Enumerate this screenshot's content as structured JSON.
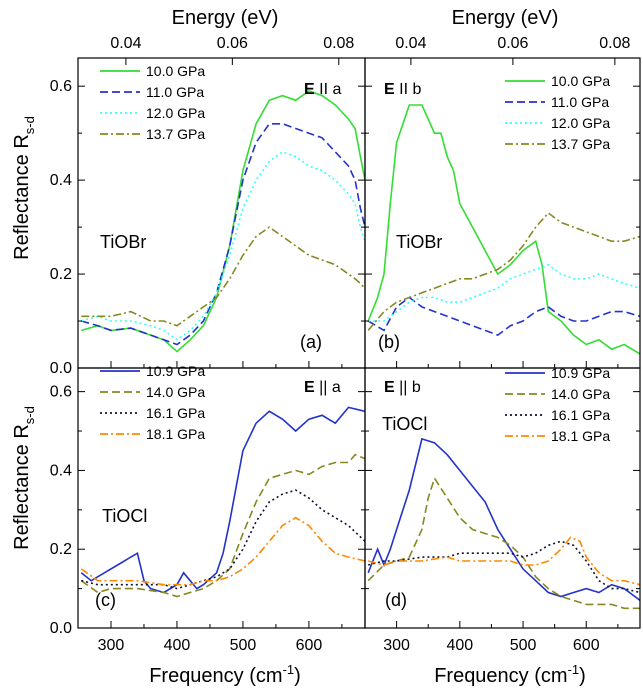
{
  "chart_data": {
    "type": "line",
    "top_axis": {
      "label": "Energy (eV)",
      "ticks": [
        "0.04",
        "0.06",
        "0.08"
      ]
    },
    "bottom_axis": {
      "label": "Frequency (cm",
      "label_sup": "-1",
      "label_end": ")",
      "ticks": [
        "300",
        "400",
        "500",
        "600"
      ],
      "xlim": [
        250,
        685
      ]
    },
    "left_axis": {
      "label": "Reflectance R",
      "label_sub": "s-d",
      "ylim": [
        0,
        0.66
      ]
    },
    "panels": [
      {
        "letter": "(a)",
        "material": "TiOBr",
        "pol_bold": "E",
        "pol_rest": " II a",
        "yticks": [
          "0.0",
          "0.2",
          "0.4",
          "0.6"
        ],
        "series": [
          {
            "name": "10.0 GPa",
            "color": "#33dd33",
            "dash": "solid",
            "x": [
              255,
              280,
              300,
              330,
              360,
              380,
              400,
              420,
              440,
              460,
              480,
              500,
              520,
              540,
              560,
              580,
              600,
              620,
              640,
              660,
              670,
              678,
              685
            ],
            "y": [
              0.08,
              0.09,
              0.08,
              0.085,
              0.07,
              0.06,
              0.035,
              0.06,
              0.09,
              0.15,
              0.26,
              0.42,
              0.52,
              0.57,
              0.58,
              0.57,
              0.59,
              0.58,
              0.56,
              0.53,
              0.51,
              0.45,
              0.4
            ]
          },
          {
            "name": "11.0 GPa",
            "color": "#2233cc",
            "dash": "dashed",
            "x": [
              255,
              280,
              300,
              330,
              360,
              380,
              400,
              420,
              440,
              460,
              480,
              500,
              520,
              540,
              560,
              580,
              600,
              620,
              640,
              660,
              670,
              678,
              685
            ],
            "y": [
              0.1,
              0.09,
              0.08,
              0.085,
              0.07,
              0.06,
              0.05,
              0.07,
              0.1,
              0.16,
              0.26,
              0.4,
              0.48,
              0.52,
              0.52,
              0.51,
              0.5,
              0.49,
              0.46,
              0.43,
              0.4,
              0.34,
              0.3
            ]
          },
          {
            "name": "12.0 GPa",
            "color": "#33ffff",
            "dash": "dotted",
            "x": [
              255,
              280,
              300,
              330,
              360,
              380,
              400,
              420,
              440,
              460,
              480,
              500,
              520,
              540,
              560,
              580,
              600,
              620,
              640,
              660,
              670,
              678,
              685
            ],
            "y": [
              0.1,
              0.11,
              0.1,
              0.1,
              0.09,
              0.08,
              0.06,
              0.08,
              0.11,
              0.16,
              0.24,
              0.34,
              0.4,
              0.44,
              0.46,
              0.45,
              0.43,
              0.42,
              0.4,
              0.37,
              0.35,
              0.3,
              0.27
            ]
          },
          {
            "name": "13.7 GPa",
            "color": "#888822",
            "dash": "dashdot",
            "x": [
              255,
              280,
              300,
              330,
              360,
              380,
              400,
              420,
              440,
              460,
              480,
              500,
              520,
              540,
              560,
              580,
              600,
              620,
              640,
              660,
              670,
              678,
              685
            ],
            "y": [
              0.11,
              0.11,
              0.11,
              0.12,
              0.1,
              0.1,
              0.09,
              0.11,
              0.13,
              0.15,
              0.19,
              0.24,
              0.28,
              0.3,
              0.28,
              0.26,
              0.24,
              0.23,
              0.22,
              0.2,
              0.19,
              0.18,
              0.17
            ]
          }
        ]
      },
      {
        "letter": "(b)",
        "material": "TiOBr",
        "pol_bold": "E",
        "pol_rest": " II b",
        "series": [
          {
            "name": "10.0 GPa",
            "color": "#33dd33",
            "dash": "solid",
            "x": [
              255,
              270,
              280,
              290,
              300,
              320,
              340,
              360,
              370,
              380,
              390,
              400,
              420,
              440,
              460,
              480,
              500,
              520,
              530,
              540,
              560,
              580,
              600,
              620,
              640,
              660,
              685
            ],
            "y": [
              0.1,
              0.15,
              0.2,
              0.35,
              0.48,
              0.56,
              0.56,
              0.5,
              0.5,
              0.45,
              0.42,
              0.35,
              0.3,
              0.25,
              0.2,
              0.22,
              0.25,
              0.27,
              0.22,
              0.12,
              0.1,
              0.07,
              0.05,
              0.06,
              0.04,
              0.05,
              0.03
            ]
          },
          {
            "name": "11.0 GPa",
            "color": "#2233cc",
            "dash": "dashed",
            "x": [
              255,
              280,
              300,
              320,
              340,
              360,
              380,
              400,
              420,
              440,
              460,
              480,
              500,
              520,
              540,
              560,
              580,
              600,
              620,
              640,
              660,
              685
            ],
            "y": [
              0.1,
              0.08,
              0.13,
              0.15,
              0.13,
              0.12,
              0.11,
              0.1,
              0.09,
              0.08,
              0.07,
              0.09,
              0.1,
              0.12,
              0.13,
              0.11,
              0.1,
              0.1,
              0.11,
              0.12,
              0.12,
              0.11
            ]
          },
          {
            "name": "12.0 GPa",
            "color": "#33ffff",
            "dash": "dotted",
            "x": [
              255,
              280,
              300,
              320,
              340,
              360,
              380,
              400,
              420,
              440,
              460,
              480,
              500,
              520,
              540,
              560,
              580,
              600,
              620,
              640,
              660,
              685
            ],
            "y": [
              0.1,
              0.1,
              0.12,
              0.14,
              0.15,
              0.15,
              0.14,
              0.14,
              0.15,
              0.16,
              0.17,
              0.19,
              0.2,
              0.21,
              0.22,
              0.2,
              0.19,
              0.19,
              0.2,
              0.19,
              0.18,
              0.17
            ]
          },
          {
            "name": "13.7 GPa",
            "color": "#888822",
            "dash": "dashdot",
            "x": [
              255,
              280,
              300,
              320,
              340,
              360,
              380,
              400,
              420,
              440,
              460,
              480,
              500,
              520,
              540,
              560,
              580,
              600,
              620,
              640,
              660,
              685
            ],
            "y": [
              0.08,
              0.12,
              0.14,
              0.15,
              0.16,
              0.17,
              0.18,
              0.19,
              0.19,
              0.2,
              0.21,
              0.23,
              0.26,
              0.3,
              0.33,
              0.31,
              0.3,
              0.29,
              0.28,
              0.27,
              0.27,
              0.28
            ]
          }
        ]
      },
      {
        "letter": "(c)",
        "material": "TiOCl",
        "pol_bold": "E",
        "pol_rest": " || a",
        "yticks": [
          "0.0",
          "0.2",
          "0.4",
          "0.6"
        ],
        "series": [
          {
            "name": "10.9 GPa",
            "color": "#2233cc",
            "dash": "solid",
            "x": [
              255,
              270,
              290,
              310,
              330,
              340,
              350,
              360,
              380,
              400,
              410,
              420,
              430,
              440,
              460,
              470,
              480,
              490,
              500,
              520,
              540,
              560,
              580,
              600,
              620,
              640,
              660,
              685
            ],
            "y": [
              0.14,
              0.12,
              0.14,
              0.16,
              0.18,
              0.19,
              0.12,
              0.1,
              0.09,
              0.11,
              0.14,
              0.12,
              0.1,
              0.11,
              0.14,
              0.19,
              0.27,
              0.36,
              0.45,
              0.52,
              0.55,
              0.53,
              0.5,
              0.53,
              0.54,
              0.52,
              0.56,
              0.55
            ]
          },
          {
            "name": "14.0 GPa",
            "color": "#888822",
            "dash": "dashed",
            "x": [
              255,
              280,
              300,
              340,
              380,
              400,
              420,
              440,
              460,
              480,
              500,
              520,
              540,
              560,
              580,
              600,
              620,
              640,
              660,
              670,
              685
            ],
            "y": [
              0.12,
              0.09,
              0.1,
              0.1,
              0.09,
              0.08,
              0.09,
              0.1,
              0.12,
              0.15,
              0.24,
              0.32,
              0.38,
              0.39,
              0.4,
              0.39,
              0.41,
              0.42,
              0.42,
              0.44,
              0.43
            ]
          },
          {
            "name": "16.1 GPa",
            "color": "#111133",
            "dash": "dotted",
            "x": [
              255,
              280,
              300,
              340,
              380,
              400,
              420,
              440,
              460,
              480,
              500,
              520,
              540,
              560,
              580,
              600,
              620,
              640,
              660,
              685
            ],
            "y": [
              0.12,
              0.11,
              0.11,
              0.11,
              0.11,
              0.1,
              0.11,
              0.12,
              0.13,
              0.15,
              0.2,
              0.27,
              0.32,
              0.34,
              0.35,
              0.33,
              0.3,
              0.28,
              0.26,
              0.22
            ]
          },
          {
            "name": "18.1 GPa",
            "color": "#ff8800",
            "dash": "dashdot",
            "x": [
              255,
              280,
              300,
              340,
              380,
              400,
              420,
              440,
              460,
              480,
              500,
              520,
              540,
              560,
              580,
              600,
              620,
              640,
              660,
              685
            ],
            "y": [
              0.15,
              0.12,
              0.12,
              0.12,
              0.11,
              0.11,
              0.11,
              0.12,
              0.12,
              0.13,
              0.15,
              0.18,
              0.22,
              0.26,
              0.28,
              0.26,
              0.22,
              0.19,
              0.18,
              0.17
            ]
          }
        ]
      },
      {
        "letter": "(d)",
        "material": "TiOCl",
        "pol_bold": "E",
        "pol_rest": " || b",
        "series": [
          {
            "name": "10.9 GPa",
            "color": "#2233cc",
            "dash": "solid",
            "x": [
              255,
              270,
              280,
              290,
              300,
              320,
              340,
              360,
              380,
              400,
              420,
              440,
              460,
              480,
              500,
              520,
              540,
              560,
              580,
              600,
              620,
              640,
              660,
              685
            ],
            "y": [
              0.14,
              0.2,
              0.16,
              0.2,
              0.25,
              0.35,
              0.48,
              0.47,
              0.44,
              0.4,
              0.36,
              0.32,
              0.25,
              0.2,
              0.15,
              0.12,
              0.09,
              0.08,
              0.09,
              0.1,
              0.09,
              0.11,
              0.1,
              0.07
            ]
          },
          {
            "name": "14.0 GPa",
            "color": "#888822",
            "dash": "dashed",
            "x": [
              255,
              280,
              300,
              320,
              340,
              350,
              360,
              380,
              400,
              420,
              440,
              460,
              480,
              500,
              520,
              540,
              560,
              580,
              600,
              620,
              640,
              660,
              685
            ],
            "y": [
              0.12,
              0.16,
              0.17,
              0.18,
              0.25,
              0.33,
              0.38,
              0.33,
              0.28,
              0.25,
              0.24,
              0.23,
              0.21,
              0.18,
              0.13,
              0.1,
              0.08,
              0.07,
              0.06,
              0.06,
              0.06,
              0.05,
              0.05
            ]
          },
          {
            "name": "16.1 GPa",
            "color": "#111133",
            "dash": "dotted",
            "x": [
              255,
              280,
              300,
              340,
              380,
              400,
              420,
              440,
              460,
              480,
              500,
              520,
              540,
              560,
              580,
              600,
              620,
              640,
              660,
              685
            ],
            "y": [
              0.16,
              0.17,
              0.17,
              0.18,
              0.18,
              0.19,
              0.19,
              0.19,
              0.19,
              0.19,
              0.18,
              0.19,
              0.21,
              0.22,
              0.21,
              0.17,
              0.12,
              0.1,
              0.1,
              0.09
            ]
          },
          {
            "name": "18.1 GPa",
            "color": "#ff8800",
            "dash": "dashdot",
            "x": [
              255,
              280,
              300,
              340,
              380,
              400,
              420,
              440,
              460,
              480,
              500,
              520,
              540,
              560,
              575,
              590,
              600,
              620,
              640,
              660,
              685
            ],
            "y": [
              0.17,
              0.16,
              0.17,
              0.17,
              0.18,
              0.17,
              0.17,
              0.17,
              0.17,
              0.17,
              0.16,
              0.16,
              0.17,
              0.2,
              0.23,
              0.22,
              0.18,
              0.14,
              0.12,
              0.12,
              0.11
            ]
          }
        ]
      }
    ]
  }
}
